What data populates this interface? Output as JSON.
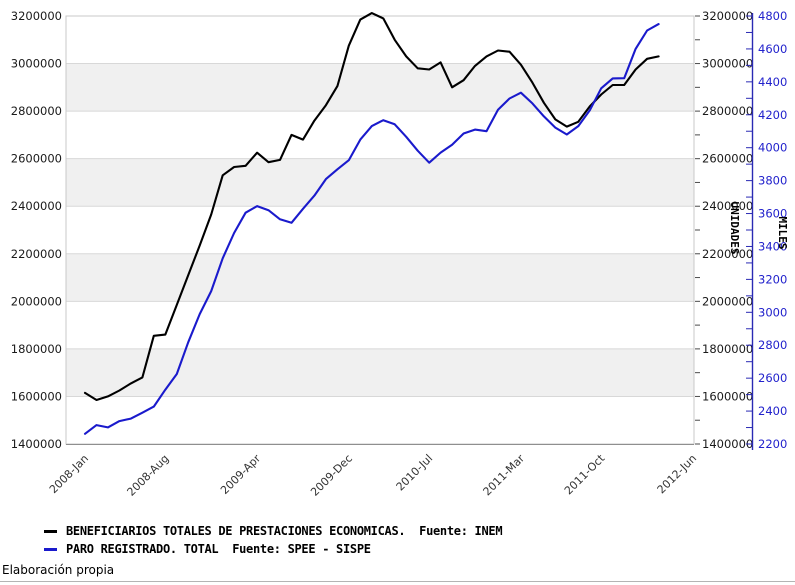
{
  "chart_data": {
    "type": "line",
    "title": "",
    "x_axis": {
      "period_start": "2008-Jan",
      "period_end_axis": "2012-Jun",
      "total_months_on_axis": 54,
      "ticks": [
        {
          "label": "2008-Jan",
          "month": 0
        },
        {
          "label": "2008-Aug",
          "month": 7
        },
        {
          "label": "2009-Apr",
          "month": 15
        },
        {
          "label": "2009-Dec",
          "month": 23
        },
        {
          "label": "2010-Jul",
          "month": 30
        },
        {
          "label": "2011-Mar",
          "month": 38
        },
        {
          "label": "2011-Oct",
          "month": 45
        },
        {
          "label": "2012-Jun",
          "month": 53
        }
      ]
    },
    "axes": {
      "left": {
        "title": "",
        "min": 1400000,
        "max": 3200000,
        "step": 200000,
        "minor_step": 100000,
        "color": "#1a1a1a"
      },
      "right_unidades": {
        "title": "UNIDADES",
        "min": 1400000,
        "max": 3200000,
        "step": 200000,
        "minor_step": 100000,
        "color": "#1a1a1a"
      },
      "right_miles": {
        "title": "MILES",
        "min": 2200,
        "max": 4800,
        "step": 200,
        "minor_step": 100,
        "color": "#2222cc",
        "line_color": "#2a2ab4"
      }
    },
    "grid": {
      "horizontal_bands": true,
      "band_color": "#f0f0f0",
      "gridline_color": "#d8d8d8"
    },
    "legend_position": "bottom-left",
    "months": [
      "2008-01",
      "2008-02",
      "2008-03",
      "2008-04",
      "2008-05",
      "2008-06",
      "2008-07",
      "2008-08",
      "2008-09",
      "2008-10",
      "2008-11",
      "2008-12",
      "2009-01",
      "2009-02",
      "2009-03",
      "2009-04",
      "2009-05",
      "2009-06",
      "2009-07",
      "2009-08",
      "2009-09",
      "2009-10",
      "2009-11",
      "2009-12",
      "2010-01",
      "2010-02",
      "2010-03",
      "2010-04",
      "2010-05",
      "2010-06",
      "2010-07",
      "2010-08",
      "2010-09",
      "2010-10",
      "2010-11",
      "2010-12",
      "2011-01",
      "2011-02",
      "2011-03",
      "2011-04",
      "2011-05",
      "2011-06",
      "2011-07",
      "2011-08",
      "2011-09",
      "2011-10",
      "2011-11",
      "2011-12",
      "2012-01",
      "2012-02",
      "2012-03"
    ],
    "series": [
      {
        "name": "BENEFICIARIOS TOTALES DE PRESTACIONES ECONOMICAS.  Fuente: INEM",
        "color": "#000000",
        "axis": "unidades",
        "values": [
          1615000,
          1585000,
          1600000,
          1625000,
          1655000,
          1680000,
          1855000,
          1860000,
          1985000,
          2110000,
          2235000,
          2365000,
          2530000,
          2565000,
          2570000,
          2625000,
          2585000,
          2595000,
          2700000,
          2680000,
          2760000,
          2825000,
          2905000,
          3075000,
          3185000,
          3212000,
          3190000,
          3100000,
          3030000,
          2980000,
          2975000,
          3005000,
          2900000,
          2930000,
          2990000,
          3030000,
          3055000,
          3050000,
          2995000,
          2920000,
          2835000,
          2765000,
          2735000,
          2755000,
          2820000,
          2870000,
          2910000,
          2910000,
          2975000,
          3020000,
          3030000
        ]
      },
      {
        "name": "PARO REGISTRADO. TOTAL  Fuente: SPEE - SISPE",
        "color": "#1a1acc",
        "axis": "miles",
        "values": [
          2262,
          2315,
          2301,
          2339,
          2354,
          2390,
          2427,
          2530,
          2625,
          2818,
          2989,
          3129,
          3328,
          3482,
          3605,
          3645,
          3620,
          3565,
          3544,
          3629,
          3709,
          3809,
          3869,
          3924,
          4049,
          4131,
          4167,
          4142,
          4066,
          3982,
          3909,
          3970,
          4018,
          4086,
          4110,
          4100,
          4231,
          4299,
          4334,
          4269,
          4190,
          4122,
          4080,
          4131,
          4227,
          4361,
          4421,
          4422,
          4600,
          4712,
          4751
        ]
      }
    ]
  },
  "legend": {
    "items": [
      {
        "label": "BENEFICIARIOS TOTALES DE PRESTACIONES ECONOMICAS.  Fuente: INEM",
        "color": "#000000"
      },
      {
        "label": "PARO REGISTRADO. TOTAL  Fuente: SPEE - SISPE",
        "color": "#1a1acc"
      }
    ]
  },
  "footer": {
    "text": "Elaboración propia"
  }
}
